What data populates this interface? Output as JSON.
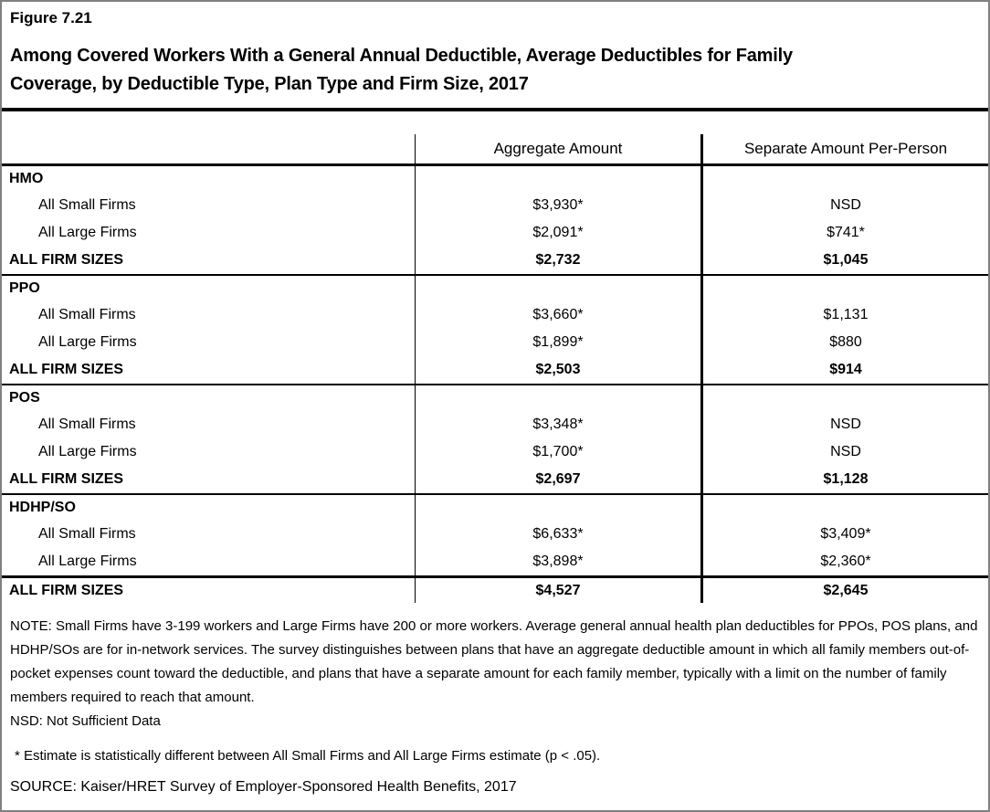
{
  "figure": {
    "label": "Figure 7.21",
    "title_line1": "Among Covered Workers With a General Annual Deductible, Average Deductibles for Family",
    "title_line2": "Coverage, by Deductible Type, Plan Type and Firm Size, 2017"
  },
  "table": {
    "header": {
      "aggregate": "Aggregate Amount",
      "separate": "Separate Amount Per-Person"
    },
    "sections": [
      {
        "plan": "HMO",
        "rows": [
          {
            "label": "All Small Firms",
            "aggregate": "$3,930*",
            "separate": "NSD"
          },
          {
            "label": "All Large Firms",
            "aggregate": "$2,091*",
            "separate": "$741*"
          },
          {
            "label": "ALL FIRM SIZES",
            "aggregate": "$2,732",
            "separate": "$1,045"
          }
        ]
      },
      {
        "plan": "PPO",
        "rows": [
          {
            "label": "All Small Firms",
            "aggregate": "$3,660*",
            "separate": "$1,131"
          },
          {
            "label": "All Large Firms",
            "aggregate": "$1,899*",
            "separate": "$880"
          },
          {
            "label": "ALL FIRM SIZES",
            "aggregate": "$2,503",
            "separate": "$914"
          }
        ]
      },
      {
        "plan": "POS",
        "rows": [
          {
            "label": "All Small Firms",
            "aggregate": "$3,348*",
            "separate": "NSD"
          },
          {
            "label": "All Large Firms",
            "aggregate": "$1,700*",
            "separate": "NSD"
          },
          {
            "label": "ALL FIRM SIZES",
            "aggregate": "$2,697",
            "separate": "$1,128"
          }
        ]
      },
      {
        "plan": "HDHP/SO",
        "rows": [
          {
            "label": "All Small Firms",
            "aggregate": "$6,633*",
            "separate": "$3,409*"
          },
          {
            "label": "All Large Firms",
            "aggregate": "$3,898*",
            "separate": "$2,360*"
          }
        ]
      }
    ],
    "total_row": {
      "label": "ALL FIRM SIZES",
      "aggregate": "$4,527",
      "separate": "$2,645"
    }
  },
  "notes": {
    "note": "NOTE: Small Firms have 3-199 workers and Large Firms have 200 or more workers. Average general annual health plan deductibles for PPOs, POS plans, and HDHP/SOs are for in-network services. The survey distinguishes between plans that have an aggregate deductible amount in which all family members out-of-pocket expenses count toward the deductible, and plans that have a separate amount for each family member, typically with a limit on the number of family members required to reach that amount.",
    "nsd": "NSD: Not Sufficient Data",
    "significance": "* Estimate is statistically different between All Small Firms and All Large Firms estimate (p < .05).",
    "source": "SOURCE: Kaiser/HRET Survey of Employer-Sponsored Health Benefits, 2017"
  },
  "colors": {
    "background": "#ffffff",
    "text": "#000000",
    "line": "#000000",
    "outer_border": "#808080"
  }
}
